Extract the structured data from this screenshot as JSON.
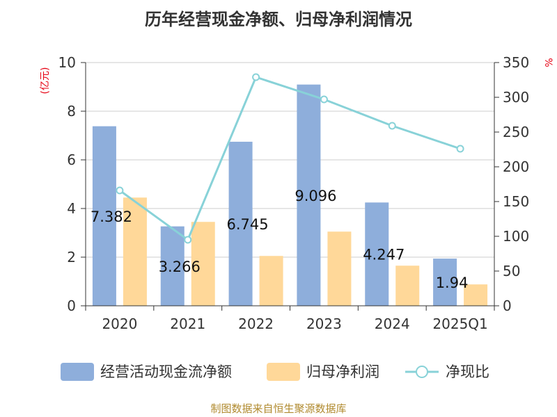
{
  "title": "历年经营现金净额、归母净利润情况",
  "source": "制图数据来自恒生聚源数据库",
  "chart_data": {
    "type": "bar",
    "title": "历年经营现金净额、归母净利润情况",
    "categories": [
      "2020",
      "2021",
      "2022",
      "2023",
      "2024",
      "2025Q1"
    ],
    "left_axis": {
      "unit": "(亿元)",
      "ylim": [
        0,
        10
      ],
      "ticks": [
        "0",
        "2",
        "4",
        "6",
        "8",
        "10"
      ]
    },
    "right_axis": {
      "unit": "%",
      "ylim": [
        0,
        350
      ],
      "ticks": [
        "0",
        "50",
        "100",
        "150",
        "200",
        "250",
        "300",
        "350"
      ]
    },
    "grid": true,
    "legend_position": "bottom",
    "series": [
      {
        "name": "经营活动现金流净额",
        "kind": "bar",
        "axis": "left",
        "color": "#8eaedb",
        "values": [
          7.382,
          3.266,
          6.745,
          9.096,
          4.247,
          1.94
        ],
        "labels": [
          "7.382",
          "3.266",
          "6.745",
          "9.096",
          "4.247",
          "1.94"
        ]
      },
      {
        "name": "归母净利润",
        "kind": "bar",
        "axis": "left",
        "color": "#ffd899",
        "values": [
          4.45,
          3.45,
          2.05,
          3.05,
          1.65,
          0.88
        ]
      },
      {
        "name": "净现比",
        "kind": "line",
        "axis": "right",
        "color": "#88d2d8",
        "values": [
          166,
          95,
          329,
          297,
          259,
          226
        ]
      }
    ]
  }
}
